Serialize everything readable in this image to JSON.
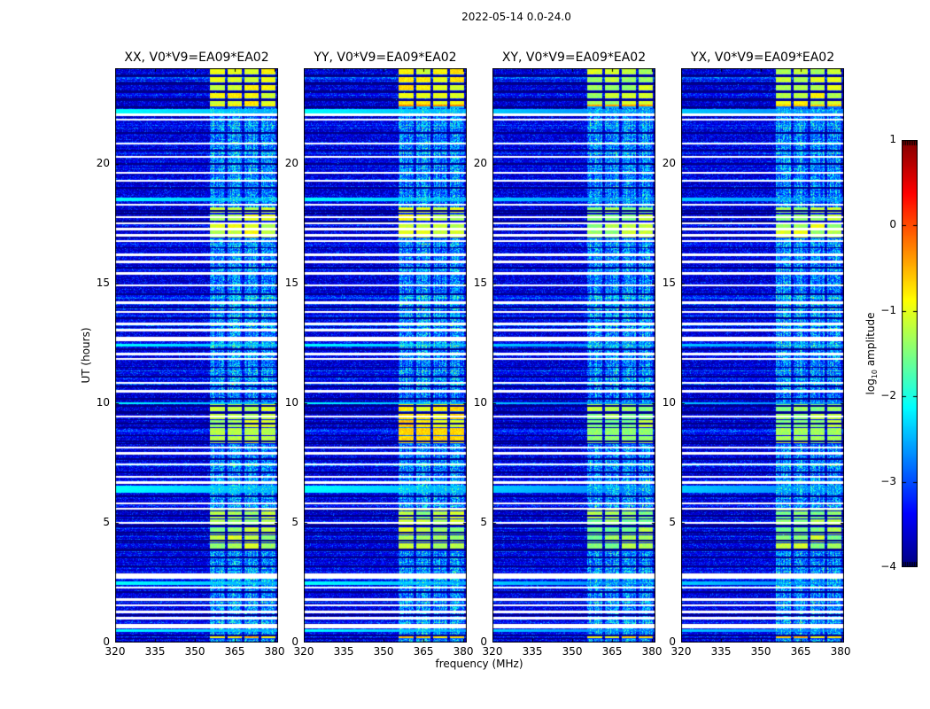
{
  "chart_data": {
    "type": "heatmap",
    "title": "2022-05-14 0.0-24.0",
    "xlabel": "frequency (MHz)",
    "ylabel": "UT (hours)",
    "x_range_mhz": [
      320,
      381.3
    ],
    "y_range_hours": [
      0,
      24
    ],
    "x_ticks": [
      320,
      335,
      350,
      365,
      380
    ],
    "y_ticks": [
      0,
      5,
      10,
      15,
      20
    ],
    "panels": [
      {
        "id": "XX",
        "label": "XX, V0*V9=EA09*EA02"
      },
      {
        "id": "YY",
        "label": "YY, V0*V9=EA09*EA02"
      },
      {
        "id": "XY",
        "label": "XY, V0*V9=EA09*EA02"
      },
      {
        "id": "YX",
        "label": "YX, V0*V9=EA09*EA02"
      }
    ],
    "colorbar": {
      "label_log": "log",
      "label_sub": "10",
      "label_rest": " amplitude",
      "ticks": [
        1,
        0,
        -1,
        -2,
        -3,
        -4
      ],
      "vmin": -4,
      "vmax": 1,
      "colormap": "jet"
    },
    "background_level_log10": -3.8,
    "rfi_band_columns_mhz": [
      [
        355.8,
        361.2
      ],
      [
        362.2,
        367.6
      ],
      [
        368.6,
        374.0
      ],
      [
        375.0,
        380.4
      ]
    ],
    "bright_blocks": [
      {
        "t": [
          22.35,
          24.0
        ],
        "levels": [
          -1.35,
          -1.25,
          -1.55,
          -1.45
        ],
        "bottom_levels": [
          -1.0,
          -0.45,
          -0.55,
          -0.8
        ]
      },
      {
        "t": [
          16.9,
          18.2
        ],
        "levels": [
          -1.5,
          -1.45,
          -1.65,
          -1.6
        ]
      },
      {
        "t": [
          8.3,
          10.0
        ],
        "levels": [
          -1.55,
          -1.2,
          -1.7,
          -1.65
        ]
      },
      {
        "t": [
          3.8,
          5.55
        ],
        "levels": [
          -1.65,
          -1.6,
          -1.75,
          -1.7
        ]
      },
      {
        "t": [
          0.15,
          0.32
        ],
        "levels": [
          -1.1,
          -1.05,
          -1.15,
          -1.1
        ]
      }
    ],
    "hot_ranges": [
      {
        "t": [
          8.4,
          8.95
        ],
        "levels": [
          -1.4,
          -0.85,
          -1.6,
          -1.5
        ]
      }
    ],
    "white_gap_times_ut": [
      [
        22.05,
        0.1
      ],
      [
        21.85,
        0.09
      ],
      [
        20.85,
        0.09
      ],
      [
        20.3,
        0.09
      ],
      [
        19.62,
        0.09
      ],
      [
        19.3,
        0.09
      ],
      [
        18.3,
        0.09
      ],
      [
        17.78,
        0.09
      ],
      [
        17.52,
        0.09
      ],
      [
        17.28,
        0.09
      ],
      [
        17.02,
        0.09
      ],
      [
        16.78,
        0.09
      ],
      [
        16.2,
        0.09
      ],
      [
        15.9,
        0.09
      ],
      [
        15.42,
        0.09
      ],
      [
        14.92,
        0.09
      ],
      [
        14.2,
        0.09
      ],
      [
        13.82,
        0.09
      ],
      [
        13.32,
        0.09
      ],
      [
        13.06,
        0.09
      ],
      [
        12.68,
        0.2
      ],
      [
        12.05,
        0.09
      ],
      [
        11.85,
        0.09
      ],
      [
        10.85,
        0.09
      ],
      [
        10.5,
        0.09
      ],
      [
        9.45,
        0.09
      ],
      [
        8.15,
        0.09
      ],
      [
        7.9,
        0.09
      ],
      [
        7.45,
        0.09
      ],
      [
        6.92,
        0.09
      ],
      [
        6.68,
        0.09
      ],
      [
        5.82,
        0.09
      ],
      [
        5.6,
        0.09
      ],
      [
        5.0,
        0.09
      ],
      [
        2.78,
        0.22
      ],
      [
        2.3,
        0.09
      ],
      [
        1.8,
        0.09
      ],
      [
        1.55,
        0.09
      ],
      [
        1.28,
        0.09
      ],
      [
        1.02,
        0.09
      ],
      [
        0.72,
        0.09
      ],
      [
        0.62,
        0.09
      ]
    ],
    "cyan_line_times_ut": [
      [
        22.2,
        0.18
      ],
      [
        18.52,
        0.12
      ],
      [
        12.42,
        0.12
      ],
      [
        10.0,
        0.1
      ],
      [
        6.42,
        0.3
      ],
      [
        2.48,
        0.16
      ],
      [
        0.5,
        0.12
      ]
    ],
    "black_line_times_ut": [
      23.67,
      23.33,
      23.0,
      22.67,
      21.3,
      20.55,
      20.0,
      19.0,
      18.05,
      16.5,
      15.65,
      14.55,
      14.0,
      13.55,
      12.25,
      11.5,
      11.1,
      10.7,
      10.2,
      9.9,
      9.6,
      9.15,
      8.4,
      7.65,
      7.1,
      6.1,
      5.3,
      4.9,
      4.6,
      4.25,
      3.9,
      3.55,
      3.2,
      2.1,
      1.15,
      0.3
    ],
    "panel_cyan_strength": [
      1,
      1,
      0.5,
      0.5
    ]
  }
}
